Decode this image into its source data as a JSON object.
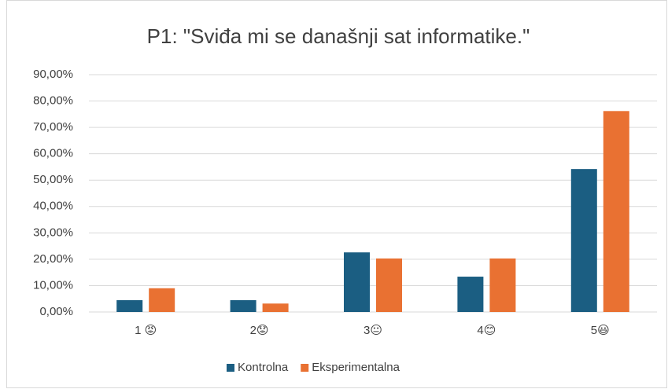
{
  "chart_data": {
    "type": "bar",
    "title": "P1: \"Sviđa mi se današnji sat informatike.\"",
    "categories": [
      "1 😡",
      "2😟",
      "3😐",
      "4😊",
      "5😃"
    ],
    "series": [
      {
        "name": "Kontrolna",
        "color": "#1b5e82",
        "values": [
          4.5,
          4.5,
          22.6,
          13.4,
          54.2
        ]
      },
      {
        "name": "Eksperimentalna",
        "color": "#e97132",
        "values": [
          9,
          3.2,
          20.3,
          20.3,
          76.2
        ]
      }
    ],
    "ylim": [
      0,
      90
    ],
    "yticks": [
      {
        "value": 0,
        "label": "0,00%"
      },
      {
        "value": 10,
        "label": "10,00%"
      },
      {
        "value": 20,
        "label": "20,00%"
      },
      {
        "value": 30,
        "label": "30,00%"
      },
      {
        "value": 40,
        "label": "40,00%"
      },
      {
        "value": 50,
        "label": "50,00%"
      },
      {
        "value": 60,
        "label": "60,00%"
      },
      {
        "value": 70,
        "label": "70,00%"
      },
      {
        "value": 80,
        "label": "80,00%"
      },
      {
        "value": 90,
        "label": "90,00%"
      }
    ],
    "grid": true,
    "legend": "bottom"
  }
}
